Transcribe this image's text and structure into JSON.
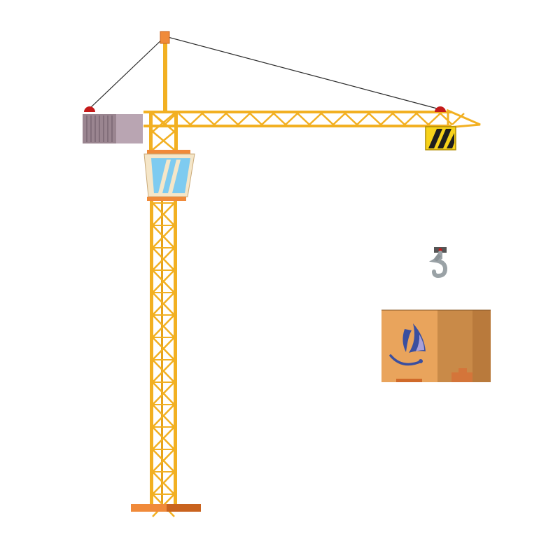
{
  "colors": {
    "background": "#ffffff",
    "crane_steel": "#f2b022",
    "crane_steel_dark": "#d48c14",
    "base_plate": "#f08a3a",
    "base_plate_shade": "#c9631e",
    "counterweight": "#9a8590",
    "counterweight_light": "#b9a5b2",
    "cabin_glass": "#7ecbf0",
    "cabin_frame": "#f5e6c8",
    "cabin_band": "#f08a3a",
    "warning_light": "#c41a1a",
    "cable": "#2a2a2a",
    "hook_metal": "#9aa2a6",
    "box_front": "#e9a45c",
    "box_side": "#c98a48",
    "box_logo": "#3a4fa0",
    "trolley_yellow": "#f7d21a",
    "trolley_black": "#1e1e1e"
  },
  "icons": {
    "crane": "tower-crane-icon",
    "hook": "crane-hook-icon",
    "box": "cardboard-box-icon",
    "logo": "sail-logo-icon"
  }
}
